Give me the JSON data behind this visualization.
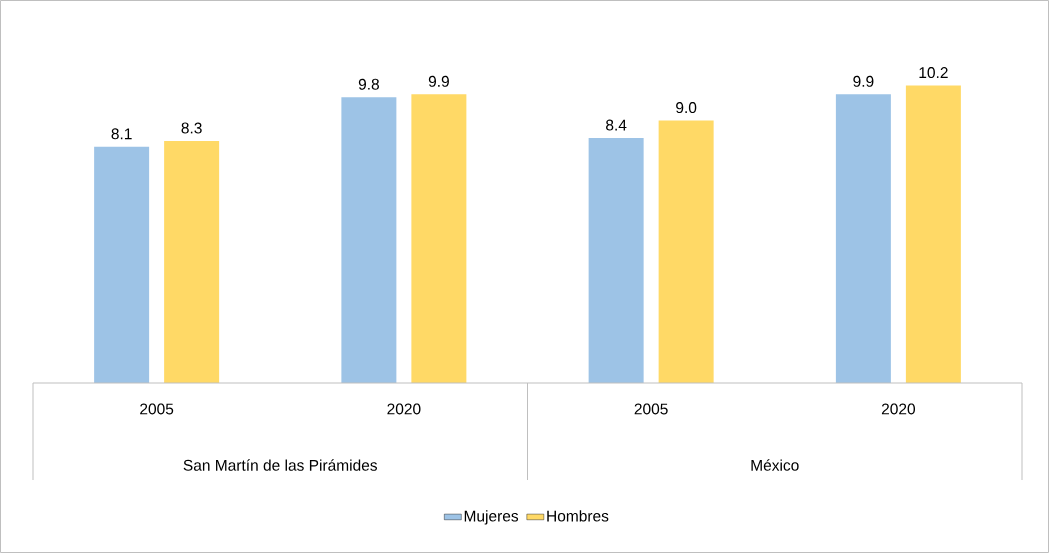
{
  "chart_data": {
    "type": "bar",
    "categories": [
      "2005",
      "2020",
      "2005",
      "2020"
    ],
    "annotations": [
      "San Martín de las Pirámides",
      "México"
    ],
    "series": [
      {
        "name": "Mujeres",
        "color": "#9dc3e6",
        "values": [
          8.1,
          9.8,
          8.4,
          9.9
        ],
        "value_labels": [
          "8.1",
          "9.8",
          "8.4",
          "9.9"
        ]
      },
      {
        "name": "Hombres",
        "color": "#ffd966",
        "values": [
          8.3,
          9.9,
          9.0,
          10.2
        ],
        "value_labels": [
          "8.3",
          "9.9",
          "9.0",
          "10.2"
        ]
      }
    ],
    "legend": "bottom"
  }
}
